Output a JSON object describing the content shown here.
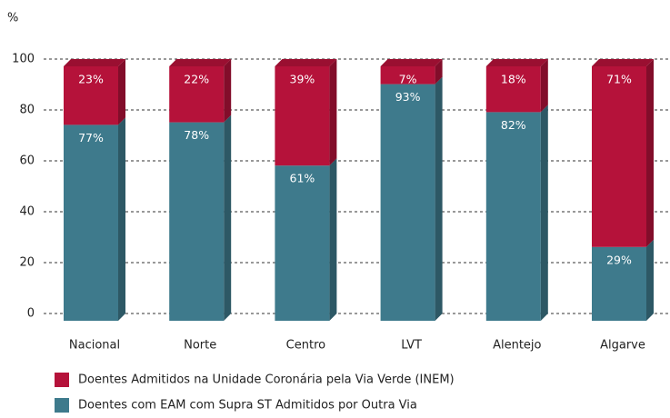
{
  "chart_data": {
    "type": "bar3d_stacked",
    "ylabel": "%",
    "categories": [
      "Nacional",
      "Norte",
      "Centro",
      "LVT",
      "Alentejo",
      "Algarve"
    ],
    "series": [
      {
        "name": "Doentes com EAM com Supra ST Admitidos por Outra Via",
        "color": "#3e7a8c",
        "values": [
          77,
          78,
          61,
          93,
          82,
          29
        ],
        "value_labels": [
          "77%",
          "78%",
          "61%",
          "93%",
          "82%",
          "29%"
        ]
      },
      {
        "name": "Doentes Admitidos na Unidade Coronária pela Via Verde (INEM)",
        "color": "#b5123a",
        "values": [
          23,
          22,
          39,
          7,
          18,
          71
        ],
        "value_labels": [
          "23%",
          "22%",
          "39%",
          "7%",
          "18%",
          "71%"
        ]
      }
    ],
    "ylim": [
      0,
      100
    ],
    "yticks": [
      0,
      20,
      40,
      60,
      80,
      100
    ],
    "grid": true
  }
}
